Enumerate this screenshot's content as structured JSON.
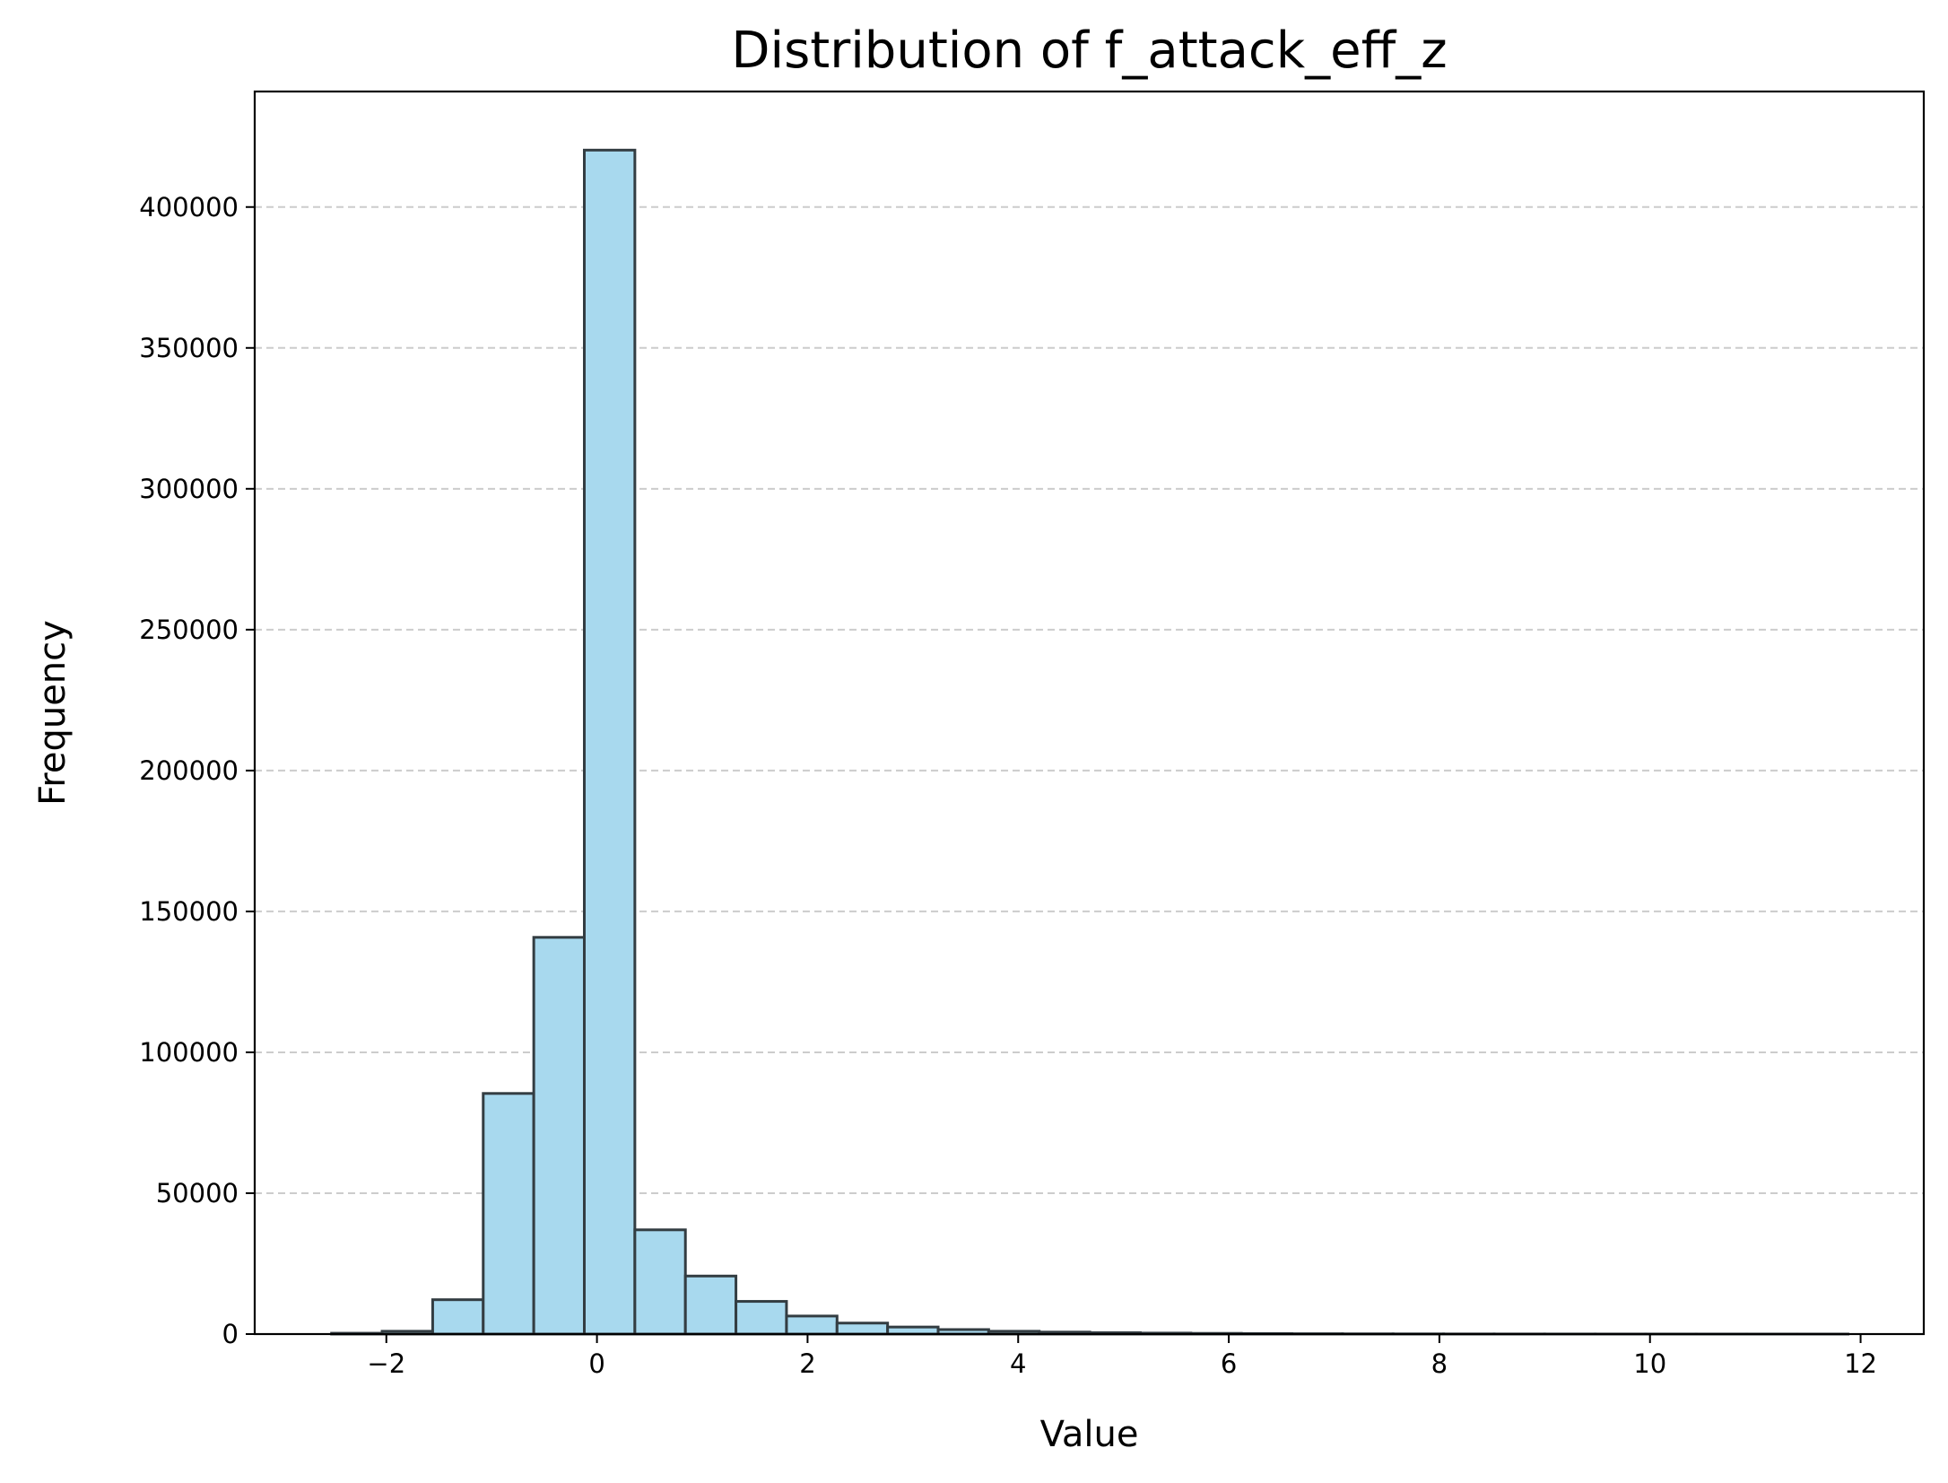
{
  "chart_data": {
    "type": "bar",
    "title": "Distribution of f_attack_eff_z",
    "xlabel": "Value",
    "ylabel": "Frequency",
    "xlim": [
      -3.25,
      12.6
    ],
    "ylim": [
      0,
      441000
    ],
    "xticks": [
      -2,
      0,
      2,
      4,
      6,
      8,
      10,
      12
    ],
    "xtick_labels": [
      "−2",
      "0",
      "2",
      "4",
      "6",
      "8",
      "10",
      "12"
    ],
    "yticks": [
      0,
      50000,
      100000,
      150000,
      200000,
      250000,
      300000,
      350000,
      400000
    ],
    "ytick_labels": [
      "0",
      "50000",
      "100000",
      "150000",
      "200000",
      "250000",
      "300000",
      "350000",
      "400000"
    ],
    "grid": "y, dashed",
    "bin_edges": [
      -2.52,
      -2.04,
      -1.56,
      -1.08,
      -0.6,
      -0.12,
      0.36,
      0.84,
      1.32,
      1.8,
      2.28,
      2.76,
      3.24,
      3.72,
      4.2,
      4.68,
      5.16,
      5.64,
      6.12,
      6.6,
      7.08,
      7.56,
      8.04,
      8.52,
      9.0,
      9.48,
      9.96,
      10.44,
      10.92,
      11.4,
      11.88
    ],
    "values": [
      300,
      1000,
      12200,
      85400,
      140800,
      420200,
      37000,
      20600,
      11600,
      6400,
      3900,
      2500,
      1600,
      1000,
      700,
      500,
      350,
      250,
      180,
      120,
      80,
      60,
      40,
      30,
      20,
      15,
      10,
      8,
      5,
      3
    ],
    "colors": {
      "bar_fill": "#a8d9ee",
      "bar_edge": "#333d42",
      "grid": "#cccccc"
    }
  }
}
